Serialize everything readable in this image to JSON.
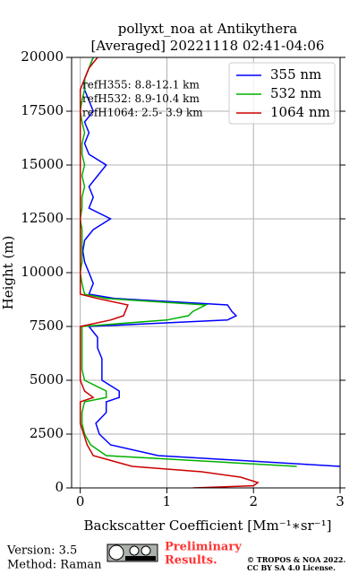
{
  "chart_data": {
    "type": "line",
    "title": [
      "pollyxt_noa at Antikythera",
      "[Averaged] 20221118 02:41-04:06"
    ],
    "xlabel": "Backscatter Coefficient [Mm⁻¹∗sr⁻¹]",
    "ylabel": "Height (m)",
    "xlim": [
      -0.1,
      3
    ],
    "ylim": [
      0,
      20000
    ],
    "xticks": [
      0,
      1,
      2,
      3
    ],
    "yticks": [
      0,
      2500,
      5000,
      7500,
      10000,
      12500,
      15000,
      17500,
      20000
    ],
    "grid": true,
    "legend": "upper right",
    "heights": [
      0,
      100,
      250,
      500,
      750,
      1000,
      1500,
      2000,
      2500,
      3000,
      3500,
      4000,
      4200,
      4500,
      5000,
      5500,
      6000,
      6500,
      7000,
      7500,
      7800,
      8000,
      8200,
      8500,
      8800,
      9000,
      9500,
      10000,
      10500,
      11000,
      11500,
      12000,
      12500,
      13000,
      13500,
      14000,
      14500,
      15000,
      15500,
      16000,
      16500,
      17000,
      17500,
      18000,
      18500,
      19000,
      19500,
      20000
    ],
    "series": [
      {
        "name": "355 nm",
        "color": "#0000ff",
        "values": [
          null,
          null,
          null,
          null,
          null,
          3.0,
          0.9,
          0.35,
          0.22,
          0.18,
          0.3,
          0.3,
          0.45,
          0.45,
          0.25,
          0.25,
          0.25,
          0.2,
          0.2,
          0.1,
          1.7,
          1.8,
          1.75,
          1.7,
          0.4,
          0.1,
          0.15,
          0.1,
          0.05,
          0.03,
          0.05,
          0.15,
          0.35,
          0.1,
          0.15,
          0.1,
          0.2,
          0.3,
          0.1,
          0.05,
          0.1,
          0.05,
          0.15,
          0.1,
          0.05,
          0.05,
          0.1,
          0.15
        ]
      },
      {
        "name": "532 nm",
        "color": "#00b000",
        "values": [
          null,
          null,
          null,
          null,
          null,
          2.5,
          0.3,
          0.12,
          0.05,
          0.02,
          0.02,
          0.05,
          0.3,
          0.3,
          0.05,
          0.02,
          0.02,
          0.02,
          0.02,
          0.02,
          1.0,
          1.25,
          1.3,
          1.45,
          0.3,
          0.05,
          0.02,
          0.0,
          0.02,
          0.02,
          0.02,
          0.02,
          0.0,
          0.02,
          0.02,
          0.05,
          0.02,
          0.05,
          0.02,
          0.02,
          0.05,
          0.02,
          0.0,
          0.02,
          0.05,
          0.05,
          0.1,
          0.15
        ]
      },
      {
        "name": "1064 nm",
        "color": "#cc0000",
        "values": [
          1.3,
          2.0,
          2.05,
          1.85,
          1.4,
          0.6,
          0.15,
          0.08,
          0.04,
          0.0,
          0.0,
          0.0,
          0.15,
          0.05,
          0.0,
          0.0,
          0.0,
          0.0,
          0.0,
          0.0,
          0.35,
          0.5,
          0.52,
          0.55,
          0.2,
          0.0,
          0.0,
          0.0,
          0.0,
          0.0,
          0.0,
          0.0,
          0.0,
          0.0,
          0.0,
          0.0,
          0.0,
          0.0,
          0.0,
          0.0,
          0.0,
          0.0,
          0.0,
          0.0,
          0.0,
          0.05,
          0.1,
          0.2
        ]
      }
    ],
    "annotations": [
      "refH355:  8.8-12.1 km",
      "refH532:  8.9-10.4 km",
      "refH1064:  2.5- 3.9 km"
    ]
  },
  "footer": {
    "version": "Version: 3.5",
    "method": "Method: Raman",
    "preliminary": [
      "Preliminary",
      "Results."
    ],
    "copyright": [
      "© TROPOS & NOA 2022.",
      "CC BY SA 4.0 License."
    ]
  }
}
